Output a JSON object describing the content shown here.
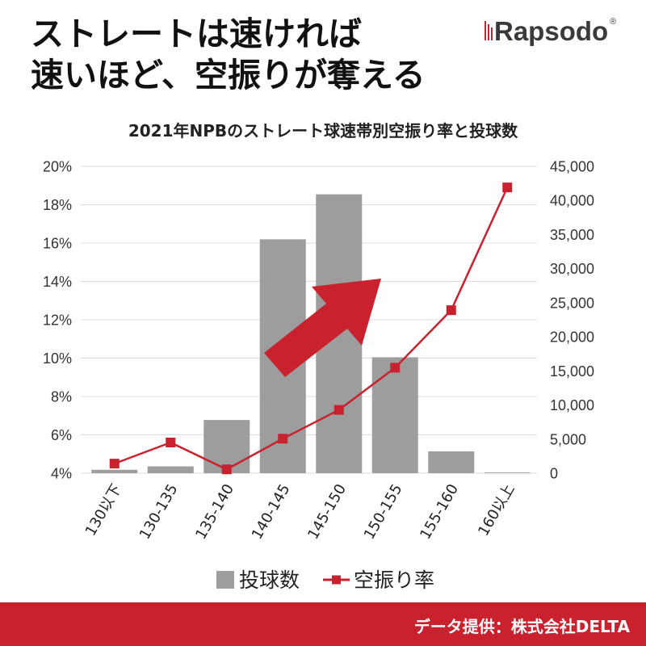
{
  "header": {
    "headline": [
      "ストレートは速ければ",
      "速いほど、空振りが奪える"
    ],
    "logo": {
      "text": "Rapsodo",
      "registered": "®"
    }
  },
  "chart_data": {
    "type": "bar",
    "title": "2021年NPBのストレート球速帯別空振り率と投球数",
    "categories": [
      "130以下",
      "130-135",
      "135-140",
      "140-145",
      "145-150",
      "150-155",
      "155-160",
      "160以上"
    ],
    "series": [
      {
        "name": "投球数",
        "type": "bar",
        "color": "#9d9d9d",
        "values": [
          500,
          1000,
          7800,
          34300,
          40900,
          17000,
          3200,
          100
        ]
      },
      {
        "name": "空振り率",
        "type": "line",
        "color": "#c9222e",
        "values": [
          4.5,
          5.6,
          4.2,
          5.8,
          7.3,
          9.5,
          12.5,
          18.9
        ]
      }
    ],
    "y_left": {
      "range": [
        4,
        20
      ],
      "ticks": [
        {
          "value": 4,
          "label": "4%"
        },
        {
          "value": 6,
          "label": "6%"
        },
        {
          "value": 8,
          "label": "8%"
        },
        {
          "value": 10,
          "label": "10%"
        },
        {
          "value": 12,
          "label": "12%"
        },
        {
          "value": 14,
          "label": "14%"
        },
        {
          "value": 16,
          "label": "16%"
        },
        {
          "value": 18,
          "label": "18%"
        },
        {
          "value": 20,
          "label": "20%"
        }
      ]
    },
    "y_right": {
      "range": [
        0,
        45000
      ],
      "ticks": [
        {
          "value": 0,
          "label": "0"
        },
        {
          "value": 5000,
          "label": "5,000"
        },
        {
          "value": 10000,
          "label": "10,000"
        },
        {
          "value": 15000,
          "label": "15,000"
        },
        {
          "value": 20000,
          "label": "20,000"
        },
        {
          "value": 25000,
          "label": "25,000"
        },
        {
          "value": 30000,
          "label": "30,000"
        },
        {
          "value": 35000,
          "label": "35,000"
        },
        {
          "value": 40000,
          "label": "40,000"
        },
        {
          "value": 45000,
          "label": "45,000"
        }
      ]
    },
    "grid": true,
    "legend_position": "bottom"
  },
  "footer": {
    "credit": "データ提供：株式会社DELTA"
  },
  "colors": {
    "accent_red": "#c9222e",
    "bar_gray": "#9d9d9d",
    "text": "#111111",
    "footer_text": "#ffffff"
  }
}
